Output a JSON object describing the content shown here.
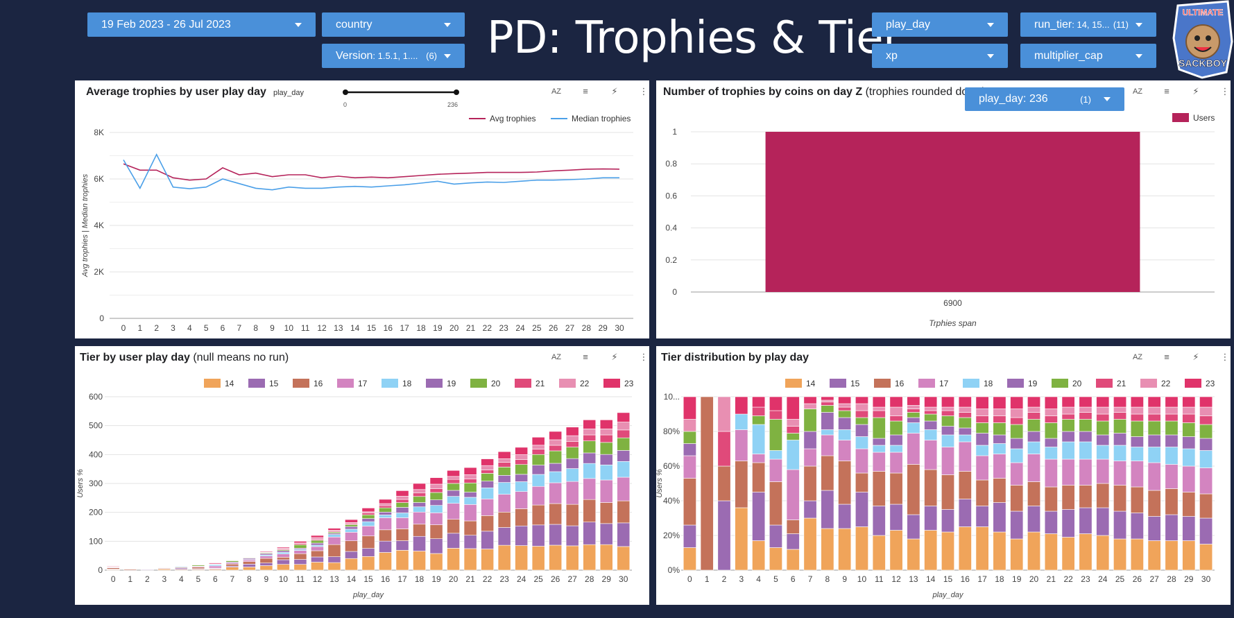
{
  "header": {
    "title": "PD: Trophies & Tier",
    "controls": {
      "date_range": "19 Feb 2023 - 26 Jul 2023",
      "country": "country",
      "version_label": "Version",
      "version_value": ": 1.5.1, 1....",
      "version_count": "(6)",
      "play_day": "play_day",
      "xp": "xp",
      "run_tier_label": "run_tier",
      "run_tier_value": ": 14, 15...",
      "run_tier_count": "(11)",
      "multiplier_cap": "multiplier_cap"
    },
    "logo_text_top": "ULTIMATE",
    "logo_text_bottom": "SACKBOY"
  },
  "tools": {
    "sort": "AZ",
    "filter": "≡",
    "insight": "⚡",
    "more": "⋮"
  },
  "colors": {
    "avg": "#b5235a",
    "median": "#4a9fe8",
    "tiers": [
      "#f0a45a",
      "#9b6bb2",
      "#c4725a",
      "#d384c0",
      "#8fd2f5",
      "#9b6bb2",
      "#7fb241",
      "#e04a7a",
      "#e88fb2",
      "#e0336a"
    ]
  },
  "panel1": {
    "title": "Average trophies by user play day",
    "slider_label": "play_day",
    "slider_min": "0",
    "slider_max": "236",
    "chart_data": {
      "type": "line",
      "x": [
        0,
        1,
        2,
        3,
        4,
        5,
        6,
        7,
        8,
        9,
        10,
        11,
        12,
        13,
        14,
        15,
        16,
        17,
        18,
        19,
        20,
        21,
        22,
        23,
        24,
        25,
        26,
        27,
        28,
        29,
        30
      ],
      "xticks": [
        "0",
        "1",
        "2",
        "3",
        "4",
        "5",
        "6",
        "7",
        "8",
        "9",
        "10",
        "11",
        "12",
        "13",
        "14",
        "15",
        "16",
        "17",
        "18",
        "19",
        "20",
        "21",
        "22",
        "23",
        "24",
        "25",
        "26",
        "27",
        "28",
        "29",
        "30"
      ],
      "yticks": [
        "0",
        "2K",
        "4K",
        "6K",
        "8K"
      ],
      "ylim": [
        0,
        8000
      ],
      "ylabel": "Avg trophies | Median trophies",
      "legend": [
        "Avg trophies",
        "Median trophies"
      ],
      "series": [
        {
          "name": "Avg trophies",
          "values": [
            6650,
            6380,
            6380,
            6050,
            5950,
            6000,
            6480,
            6180,
            6250,
            6100,
            6180,
            6180,
            6050,
            6120,
            6050,
            6080,
            6050,
            6100,
            6150,
            6200,
            6230,
            6250,
            6280,
            6280,
            6280,
            6300,
            6350,
            6380,
            6420,
            6430,
            6420
          ]
        },
        {
          "name": "Median trophies",
          "values": [
            6820,
            5600,
            7050,
            5650,
            5580,
            5650,
            6000,
            5800,
            5600,
            5530,
            5650,
            5600,
            5600,
            5650,
            5680,
            5650,
            5700,
            5750,
            5820,
            5900,
            5780,
            5830,
            5870,
            5850,
            5900,
            5950,
            5950,
            5970,
            6000,
            6050,
            6050
          ]
        }
      ]
    }
  },
  "panel2": {
    "title": "Number of trophies by coins on day Z",
    "subtitle": " (trophies rounded down)",
    "filter_label": "play_day",
    "filter_value": ": 236",
    "filter_count": "(1)",
    "chart_data": {
      "type": "bar",
      "categories": [
        "6900"
      ],
      "series": [
        {
          "name": "Users",
          "values": [
            1
          ]
        }
      ],
      "yticks": [
        "0",
        "0.2",
        "0.4",
        "0.6",
        "0.8",
        "1"
      ],
      "ylim": [
        0,
        1
      ],
      "xlabel": "Trphies span",
      "legend": [
        "Users"
      ]
    }
  },
  "panel3": {
    "title": "Tier by user play day",
    "subtitle": " (null means no run)",
    "chart_data": {
      "type": "bar",
      "stacked": true,
      "categories": [
        "0",
        "1",
        "2",
        "3",
        "4",
        "5",
        "6",
        "7",
        "8",
        "9",
        "10",
        "11",
        "12",
        "13",
        "14",
        "15",
        "16",
        "17",
        "18",
        "19",
        "20",
        "21",
        "22",
        "23",
        "24",
        "25",
        "26",
        "27",
        "28",
        "29",
        "30"
      ],
      "legend": [
        "14",
        "15",
        "16",
        "17",
        "18",
        "19",
        "20",
        "21",
        "22",
        "23"
      ],
      "yticks": [
        "0",
        "100",
        "200",
        "300",
        "400",
        "500",
        "600"
      ],
      "ylim": [
        0,
        600
      ],
      "ylabel": "Users %",
      "xlabel": "play_day",
      "totals": [
        15,
        3,
        5,
        10,
        15,
        20,
        25,
        35,
        45,
        65,
        80,
        100,
        120,
        145,
        175,
        215,
        245,
        275,
        300,
        320,
        345,
        355,
        385,
        410,
        425,
        460,
        480,
        495,
        520,
        520,
        545
      ]
    }
  },
  "panel4": {
    "title": "Tier distribution by play day",
    "chart_data": {
      "type": "bar",
      "stacked": true,
      "percent": true,
      "categories": [
        "0",
        "1",
        "2",
        "3",
        "4",
        "5",
        "6",
        "7",
        "8",
        "9",
        "10",
        "11",
        "12",
        "13",
        "14",
        "15",
        "16",
        "17",
        "18",
        "19",
        "20",
        "21",
        "22",
        "23",
        "24",
        "25",
        "26",
        "27",
        "28",
        "29",
        "30"
      ],
      "legend": [
        "14",
        "15",
        "16",
        "17",
        "18",
        "19",
        "20",
        "21",
        "22",
        "23"
      ],
      "yticks": [
        "0%",
        "20%",
        "40%",
        "60%",
        "80%",
        "10..."
      ],
      "ylim": [
        0,
        100
      ],
      "ylabel": "Users %",
      "xlabel": "play_day",
      "shares": [
        [
          13,
          13,
          27,
          13,
          0,
          7,
          7,
          0,
          7,
          13
        ],
        [
          0,
          0,
          100,
          0,
          0,
          0,
          0,
          0,
          0,
          0
        ],
        [
          0,
          40,
          20,
          0,
          0,
          0,
          0,
          20,
          20,
          0
        ],
        [
          36,
          0,
          27,
          18,
          9,
          0,
          0,
          0,
          0,
          10
        ],
        [
          17,
          28,
          17,
          5,
          17,
          0,
          5,
          5,
          0,
          6
        ],
        [
          13,
          13,
          25,
          13,
          5,
          0,
          18,
          5,
          0,
          8
        ],
        [
          12,
          9,
          8,
          29,
          17,
          0,
          4,
          4,
          4,
          13
        ],
        [
          30,
          10,
          20,
          10,
          0,
          10,
          13,
          0,
          3,
          4
        ],
        [
          24,
          22,
          20,
          12,
          3,
          10,
          4,
          2,
          1,
          2
        ],
        [
          24,
          14,
          25,
          12,
          6,
          7,
          4,
          2,
          2,
          4
        ],
        [
          25,
          20,
          11,
          14,
          7,
          7,
          4,
          4,
          4,
          4
        ],
        [
          20,
          17,
          20,
          11,
          4,
          4,
          12,
          4,
          2,
          6
        ],
        [
          23,
          15,
          18,
          12,
          4,
          6,
          8,
          3,
          5,
          6
        ],
        [
          18,
          14,
          29,
          18,
          6,
          3,
          3,
          2,
          2,
          5
        ],
        [
          23,
          14,
          21,
          17,
          6,
          5,
          4,
          2,
          2,
          6
        ],
        [
          22,
          13,
          20,
          16,
          7,
          5,
          6,
          3,
          2,
          6
        ],
        [
          25,
          16,
          16,
          17,
          4,
          4,
          6,
          3,
          3,
          6
        ],
        [
          25,
          12,
          15,
          14,
          6,
          7,
          6,
          4,
          4,
          7
        ],
        [
          22,
          17,
          14,
          14,
          6,
          5,
          7,
          4,
          4,
          7
        ],
        [
          18,
          16,
          15,
          13,
          8,
          6,
          8,
          4,
          5,
          7
        ],
        [
          22,
          15,
          14,
          16,
          7,
          6,
          7,
          4,
          3,
          6
        ],
        [
          21,
          13,
          14,
          16,
          7,
          5,
          9,
          4,
          4,
          7
        ],
        [
          19,
          16,
          14,
          15,
          10,
          6,
          7,
          3,
          4,
          6
        ],
        [
          21,
          15,
          13,
          15,
          10,
          6,
          7,
          4,
          3,
          6
        ],
        [
          20,
          16,
          14,
          14,
          8,
          6,
          8,
          4,
          4,
          6
        ],
        [
          18,
          16,
          15,
          14,
          9,
          7,
          8,
          4,
          3,
          6
        ],
        [
          18,
          15,
          15,
          15,
          8,
          6,
          9,
          4,
          4,
          6
        ],
        [
          17,
          14,
          15,
          16,
          9,
          7,
          8,
          4,
          4,
          6
        ],
        [
          17,
          15,
          15,
          14,
          10,
          7,
          8,
          4,
          4,
          6
        ],
        [
          17,
          14,
          14,
          15,
          10,
          7,
          8,
          5,
          4,
          6
        ],
        [
          15,
          15,
          14,
          15,
          10,
          7,
          8,
          5,
          5,
          6
        ]
      ]
    }
  }
}
